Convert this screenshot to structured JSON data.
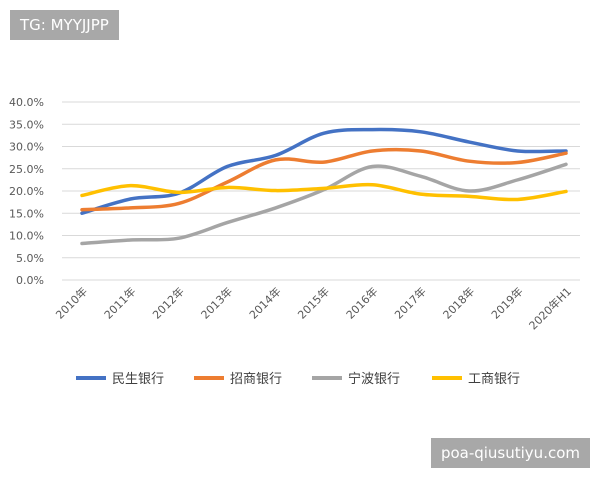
{
  "watermarks": {
    "top_left": "TG: MYYJJPP",
    "bottom_right": "poa-qiusutiyu.com"
  },
  "chart_data": {
    "type": "line",
    "smooth": true,
    "title": "",
    "xlabel": "",
    "ylabel": "",
    "ylim": [
      0,
      40
    ],
    "yticks": [
      "0.0%",
      "5.0%",
      "10.0%",
      "15.0%",
      "20.0%",
      "25.0%",
      "30.0%",
      "35.0%",
      "40.0%"
    ],
    "grid": true,
    "legend_position": "bottom",
    "categories": [
      "2010年",
      "2011年",
      "2012年",
      "2013年",
      "2014年",
      "2015年",
      "2016年",
      "2017年",
      "2018年",
      "2019年",
      "2020年H1"
    ],
    "series": [
      {
        "name": "民生银行",
        "color": "#4472c4",
        "values": [
          15.0,
          18.2,
          19.5,
          25.5,
          28.0,
          33.0,
          33.8,
          33.3,
          31.0,
          29.0,
          29.0
        ]
      },
      {
        "name": "招商银行",
        "color": "#ed7d31",
        "values": [
          15.8,
          16.2,
          17.2,
          22.0,
          27.0,
          26.5,
          29.0,
          29.0,
          26.7,
          26.4,
          28.5
        ]
      },
      {
        "name": "宁波银行",
        "color": "#a5a5a5",
        "values": [
          8.2,
          9.0,
          9.4,
          12.9,
          16.2,
          20.3,
          25.5,
          23.3,
          20.0,
          22.5,
          26.0
        ]
      },
      {
        "name": "工商银行",
        "color": "#ffc000",
        "values": [
          19.0,
          21.2,
          19.7,
          20.8,
          20.1,
          20.6,
          21.4,
          19.3,
          18.8,
          18.1,
          19.9
        ]
      }
    ]
  }
}
